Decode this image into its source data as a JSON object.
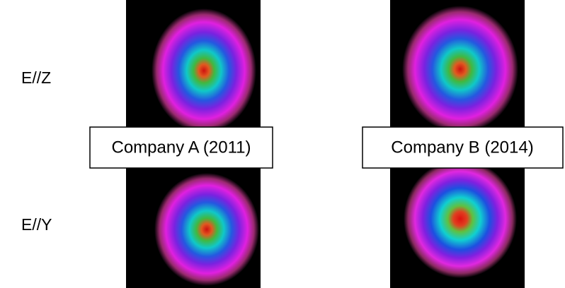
{
  "rows": [
    {
      "label": "E//Z"
    },
    {
      "label": "E//Y"
    }
  ],
  "columns": [
    {
      "label": "Company A (2011)"
    },
    {
      "label": "Company B (2014)"
    }
  ]
}
